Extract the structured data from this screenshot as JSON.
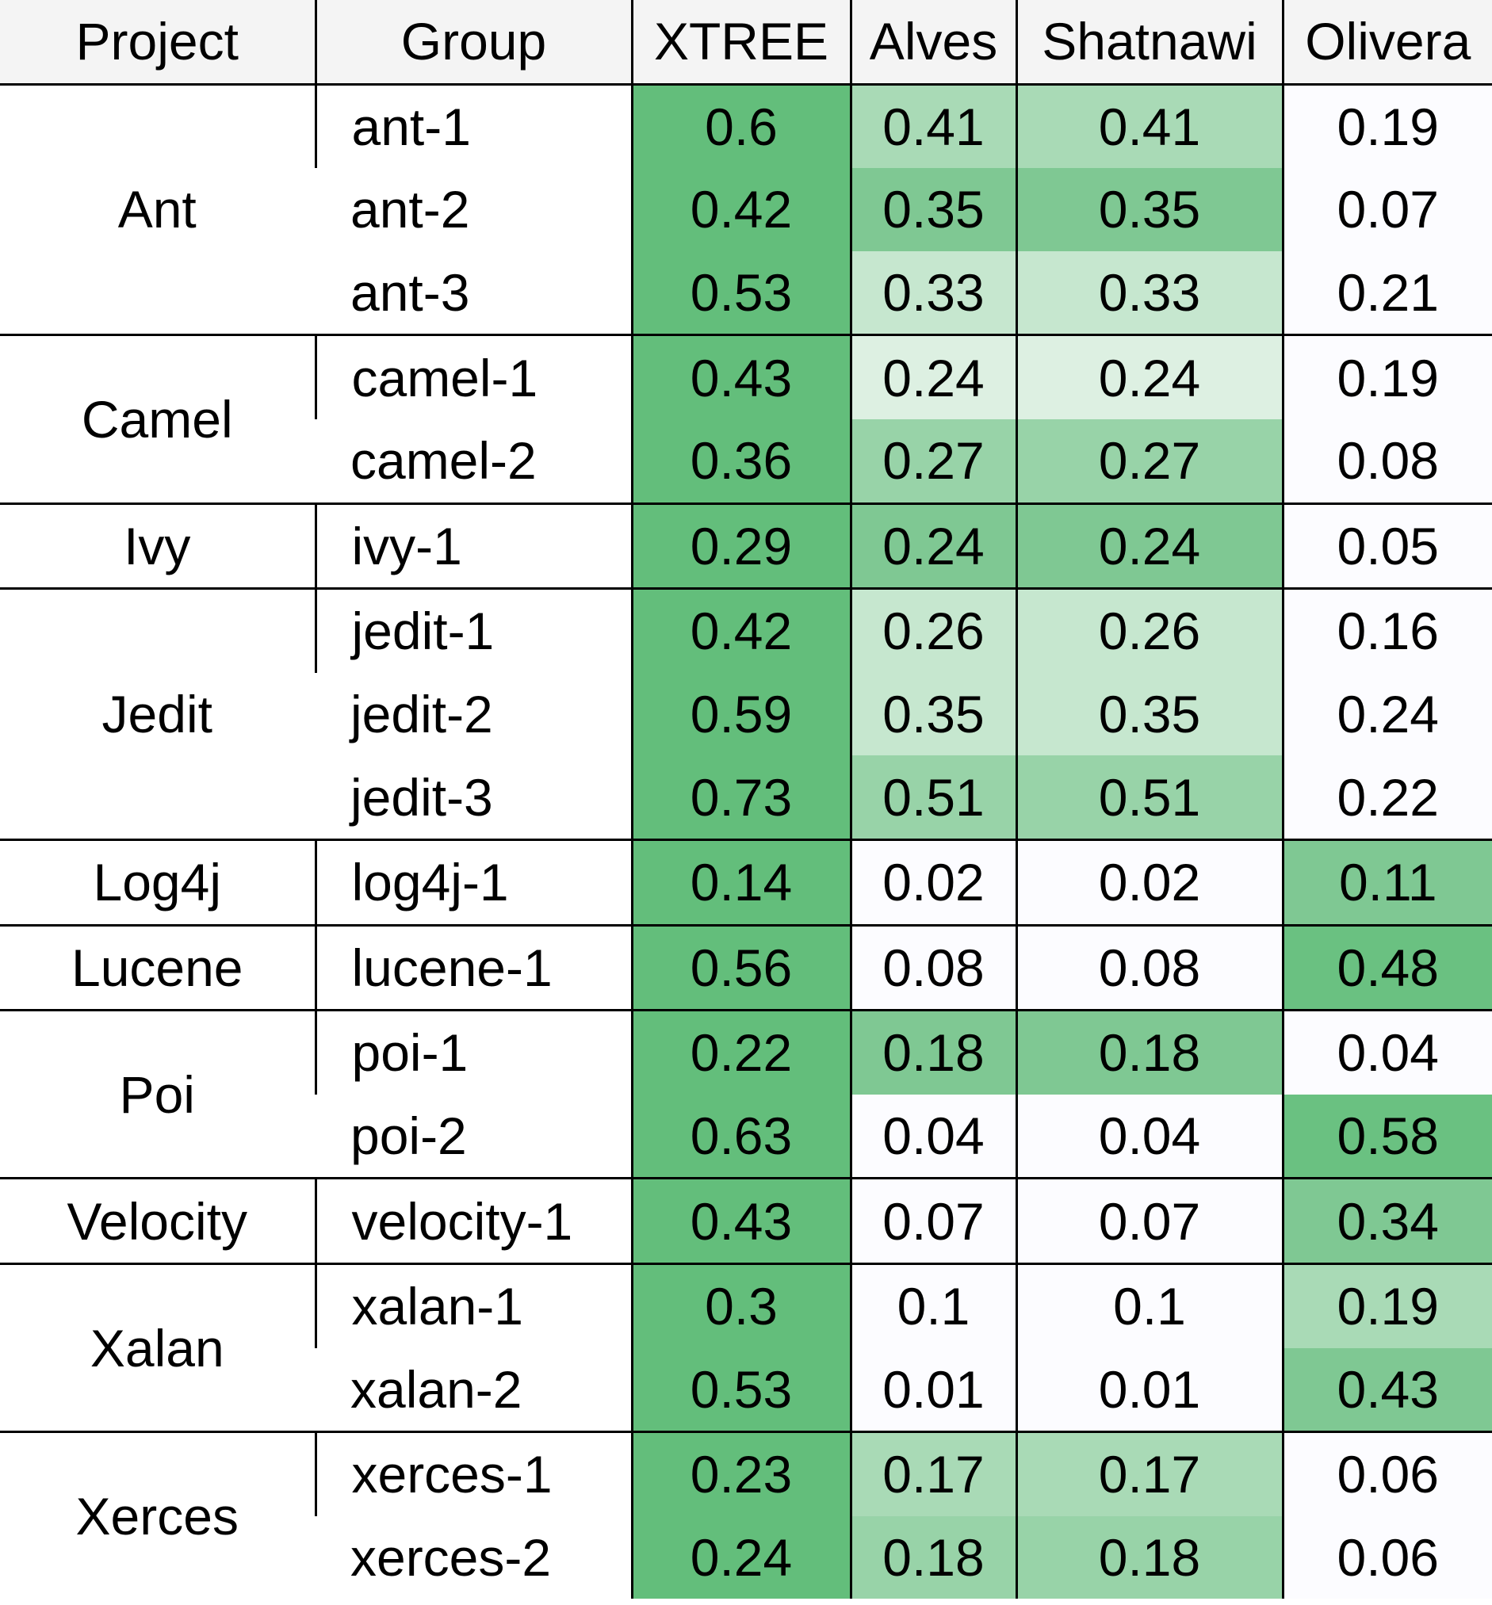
{
  "table": {
    "header": [
      "Project",
      "Group",
      "XTREE",
      "Alves",
      "Shatnawi",
      "Olivera"
    ],
    "groups": [
      {
        "project": "Ant",
        "rows": [
          [
            "ant-1",
            0.6,
            0.41,
            0.41,
            0.19
          ],
          [
            "ant-2",
            0.42,
            0.35,
            0.35,
            0.07
          ],
          [
            "ant-3",
            0.53,
            0.33,
            0.33,
            0.21
          ]
        ]
      },
      {
        "project": "Camel",
        "rows": [
          [
            "camel-1",
            0.43,
            0.24,
            0.24,
            0.19
          ],
          [
            "camel-2",
            0.36,
            0.27,
            0.27,
            0.08
          ]
        ]
      },
      {
        "project": "Ivy",
        "rows": [
          [
            "ivy-1",
            0.29,
            0.24,
            0.24,
            0.05
          ]
        ]
      },
      {
        "project": "Jedit",
        "rows": [
          [
            "jedit-1",
            0.42,
            0.26,
            0.26,
            0.16
          ],
          [
            "jedit-2",
            0.59,
            0.35,
            0.35,
            0.24
          ],
          [
            "jedit-3",
            0.73,
            0.51,
            0.51,
            0.22
          ]
        ]
      },
      {
        "project": "Log4j",
        "rows": [
          [
            "log4j-1",
            0.14,
            0.02,
            0.02,
            0.11
          ]
        ]
      },
      {
        "project": "Lucene",
        "rows": [
          [
            "lucene-1",
            0.56,
            0.08,
            0.08,
            0.48
          ]
        ]
      },
      {
        "project": "Poi",
        "rows": [
          [
            "poi-1",
            0.22,
            0.18,
            0.18,
            0.04
          ],
          [
            "poi-2",
            0.63,
            0.04,
            0.04,
            0.58
          ]
        ]
      },
      {
        "project": "Velocity",
        "rows": [
          [
            "velocity-1",
            0.43,
            0.07,
            0.07,
            0.34
          ]
        ]
      },
      {
        "project": "Xalan",
        "rows": [
          [
            "xalan-1",
            0.3,
            0.1,
            0.1,
            0.19
          ],
          [
            "xalan-2",
            0.53,
            0.01,
            0.01,
            0.43
          ]
        ]
      },
      {
        "project": "Xerces",
        "rows": [
          [
            "xerces-1",
            0.23,
            0.17,
            0.17,
            0.06
          ],
          [
            "xerces-2",
            0.24,
            0.18,
            0.18,
            0.06
          ]
        ]
      }
    ]
  }
}
